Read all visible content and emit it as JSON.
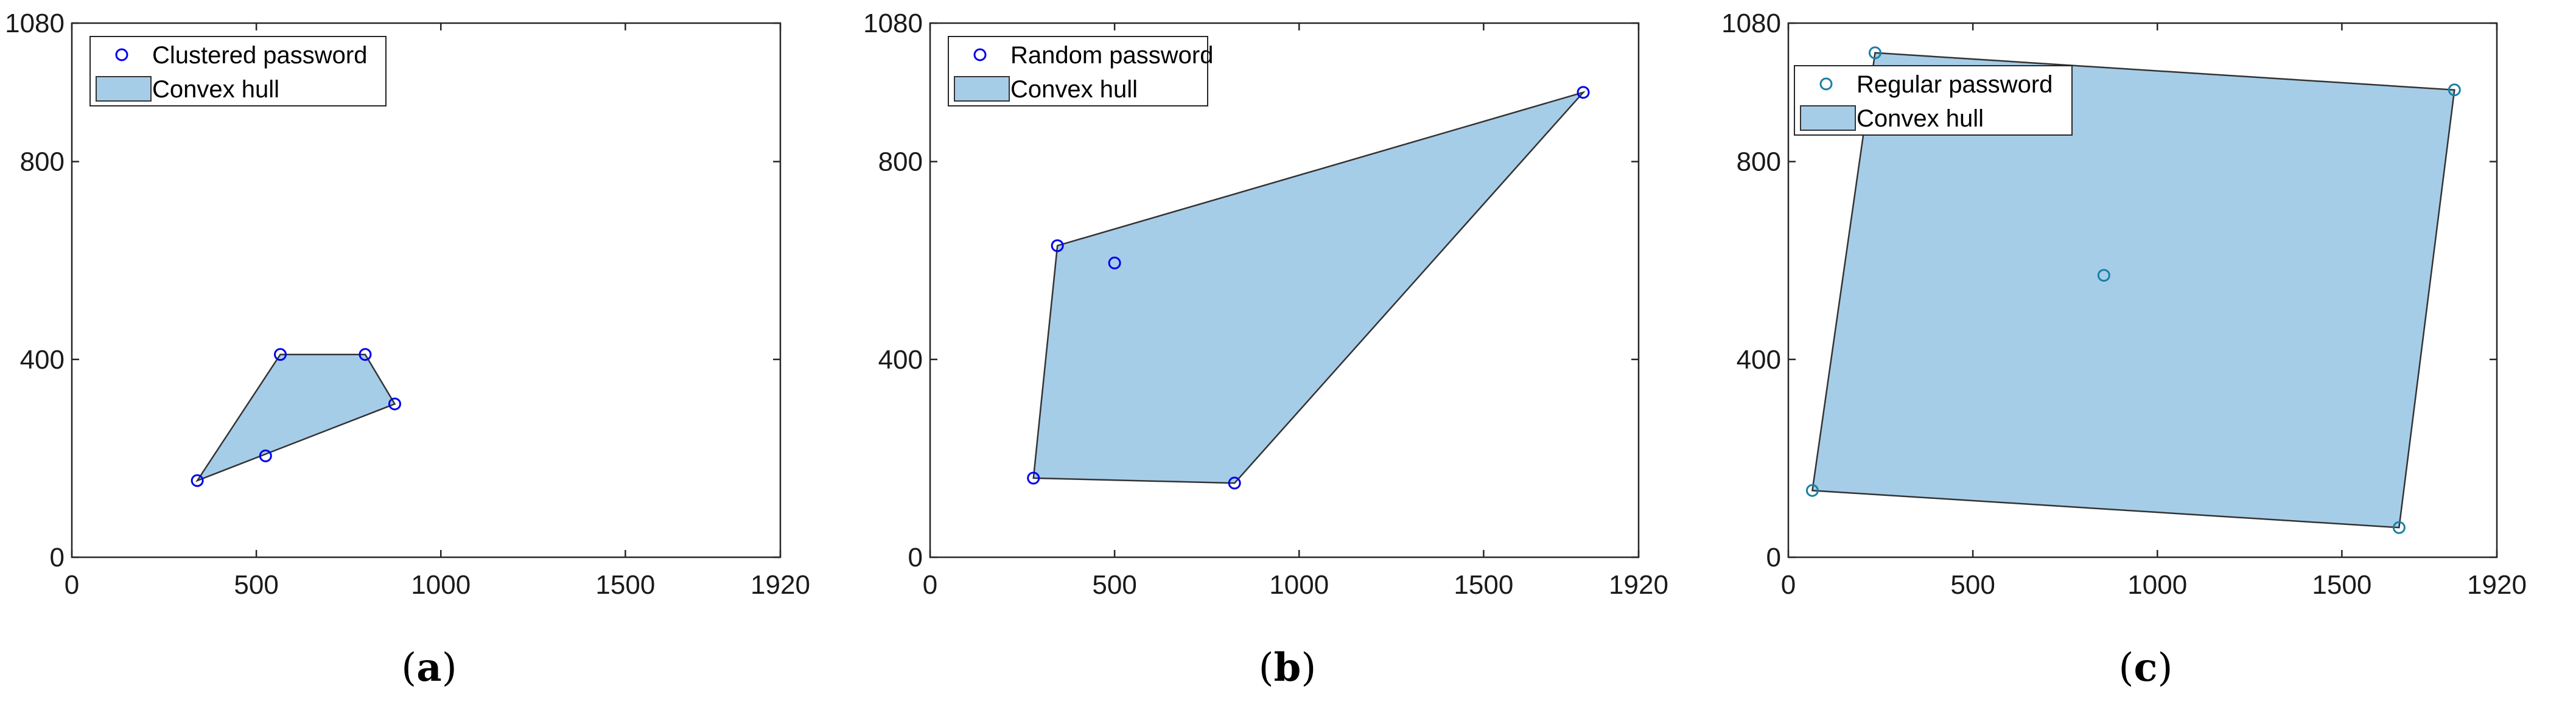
{
  "chart_data": [
    {
      "type": "scatter",
      "caption_letter": "a",
      "xlim": [
        0,
        1920
      ],
      "ylim": [
        0,
        1080
      ],
      "xticks": [
        0,
        500,
        1000,
        1500,
        1920
      ],
      "yticks": [
        0,
        400,
        800,
        1080
      ],
      "grid": false,
      "legend_placement": "top-left",
      "points_series": {
        "name": "Clustered password",
        "color": "#0000ee"
      },
      "hull_series": {
        "name": "Convex hull",
        "fill": "#a6cde8",
        "stroke": "#333333"
      },
      "points": [
        [
          340,
          155
        ],
        [
          565,
          410
        ],
        [
          795,
          410
        ],
        [
          875,
          310
        ],
        [
          525,
          205
        ]
      ],
      "hull": [
        [
          340,
          155
        ],
        [
          565,
          410
        ],
        [
          795,
          410
        ],
        [
          875,
          310
        ]
      ]
    },
    {
      "type": "scatter",
      "caption_letter": "b",
      "xlim": [
        0,
        1920
      ],
      "ylim": [
        0,
        1080
      ],
      "xticks": [
        0,
        500,
        1000,
        1500,
        1920
      ],
      "yticks": [
        0,
        400,
        800,
        1080
      ],
      "grid": false,
      "legend_placement": "top-left",
      "points_series": {
        "name": "Random password",
        "color": "#0000ee"
      },
      "hull_series": {
        "name": "Convex hull",
        "fill": "#a6cde8",
        "stroke": "#333333"
      },
      "points": [
        [
          280,
          160
        ],
        [
          345,
          630
        ],
        [
          500,
          595
        ],
        [
          825,
          150
        ],
        [
          1770,
          940
        ]
      ],
      "hull": [
        [
          280,
          160
        ],
        [
          345,
          630
        ],
        [
          1770,
          940
        ],
        [
          825,
          150
        ]
      ]
    },
    {
      "type": "scatter",
      "caption_letter": "c",
      "xlim": [
        0,
        1920
      ],
      "ylim": [
        0,
        1080
      ],
      "xticks": [
        0,
        500,
        1000,
        1500,
        1920
      ],
      "yticks": [
        0,
        400,
        800,
        1080
      ],
      "grid": false,
      "legend_placement": "top-left",
      "points_series": {
        "name": "Regular password",
        "color": "#1a7fa6"
      },
      "hull_series": {
        "name": "Convex hull",
        "fill": "#a6cde8",
        "stroke": "#333333"
      },
      "points": [
        [
          235,
          1020
        ],
        [
          1805,
          945
        ],
        [
          65,
          135
        ],
        [
          1655,
          60
        ],
        [
          855,
          570
        ]
      ],
      "hull": [
        [
          235,
          1020
        ],
        [
          1805,
          945
        ],
        [
          1655,
          60
        ],
        [
          65,
          135
        ]
      ]
    }
  ]
}
